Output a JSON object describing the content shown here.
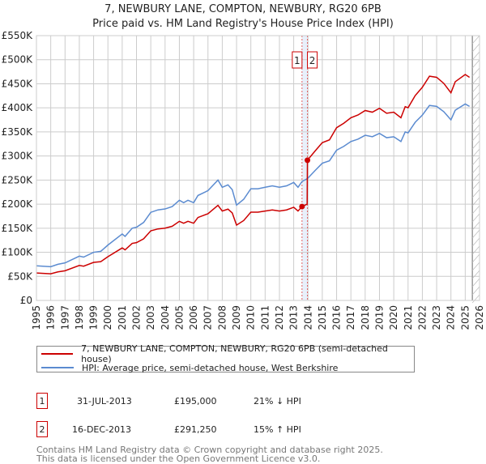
{
  "chart_data": {
    "type": "line",
    "title": "7, NEWBURY LANE, COMPTON, NEWBURY, RG20 6PB",
    "subtitle": "Price paid vs. HM Land Registry's House Price Index (HPI)",
    "ylim": [
      0,
      550000
    ],
    "xlim": [
      1995,
      2026
    ],
    "y_ticks": [
      0,
      50000,
      100000,
      150000,
      200000,
      250000,
      300000,
      350000,
      400000,
      450000,
      500000,
      550000
    ],
    "y_tick_labels": [
      "£0",
      "£50K",
      "£100K",
      "£150K",
      "£200K",
      "£250K",
      "£300K",
      "£350K",
      "£400K",
      "£450K",
      "£500K",
      "£550K"
    ],
    "x_ticks": [
      1995,
      1996,
      1997,
      1998,
      1999,
      2000,
      2001,
      2002,
      2003,
      2004,
      2005,
      2006,
      2007,
      2008,
      2009,
      2010,
      2011,
      2012,
      2013,
      2014,
      2015,
      2016,
      2017,
      2018,
      2019,
      2020,
      2021,
      2022,
      2023,
      2024,
      2025,
      2026
    ],
    "series": [
      {
        "name": "7, NEWBURY LANE, COMPTON, NEWBURY, RG20 6PB (semi-detached house)",
        "color": "#cc0000",
        "derived_from_hpi": true,
        "ratio_before": 0.79,
        "ratio_after": 1.15
      },
      {
        "name": "HPI: Average price, semi-detached house, West Berkshire",
        "color": "#5b8bd0",
        "x": [
          1995,
          1996,
          1996.5,
          1997,
          1998,
          1998.3,
          1999,
          1999.5,
          2000,
          2001,
          2001.2,
          2001.7,
          2002,
          2002.5,
          2003,
          2003.5,
          2004,
          2004.5,
          2005,
          2005.3,
          2005.6,
          2006,
          2006.3,
          2007,
          2007.7,
          2008,
          2008.4,
          2008.7,
          2009,
          2009.5,
          2010,
          2010.5,
          2011,
          2011.5,
          2012,
          2012.5,
          2013,
          2013.3,
          2013.58,
          2013.96,
          2014.5,
          2015,
          2015.5,
          2016,
          2016.5,
          2017,
          2017.5,
          2018,
          2018.5,
          2019,
          2019.5,
          2020,
          2020.5,
          2020.8,
          2021,
          2021.5,
          2022,
          2022.5,
          2023,
          2023.5,
          2024,
          2024.3,
          2025,
          2025.3
        ],
        "values": [
          72000,
          70000,
          75000,
          78000,
          92000,
          90000,
          100000,
          102000,
          115000,
          138000,
          133000,
          150000,
          152000,
          162000,
          183000,
          188000,
          190000,
          195000,
          208000,
          203000,
          208000,
          203000,
          218000,
          228000,
          250000,
          235000,
          240000,
          230000,
          198000,
          210000,
          232000,
          232000,
          235000,
          238000,
          235000,
          238000,
          245000,
          235000,
          247000,
          253000,
          270000,
          285000,
          290000,
          312000,
          320000,
          330000,
          335000,
          343000,
          340000,
          347000,
          338000,
          340000,
          330000,
          350000,
          348000,
          370000,
          385000,
          405000,
          403000,
          392000,
          375000,
          395000,
          408000,
          403000
        ]
      }
    ],
    "sales": [
      {
        "label": "1",
        "date": "31-JUL-2013",
        "x": 2013.58,
        "price": "£195,000",
        "price_value": 195000,
        "hpi": "21% ↓ HPI"
      },
      {
        "label": "2",
        "date": "16-DEC-2013",
        "x": 2013.96,
        "price": "£291,250",
        "price_value": 291250,
        "hpi": "15% ↑ HPI"
      }
    ],
    "forecast_start": 2025.5
  },
  "legend": {
    "price": "7, NEWBURY LANE, COMPTON, NEWBURY, RG20 6PB (semi-detached house)",
    "hpi": "HPI: Average price, semi-detached house, West Berkshire"
  },
  "footer": {
    "line1": "Contains HM Land Registry data © Crown copyright and database right 2025.",
    "line2": "This data is licensed under the Open Government Licence v3.0."
  }
}
